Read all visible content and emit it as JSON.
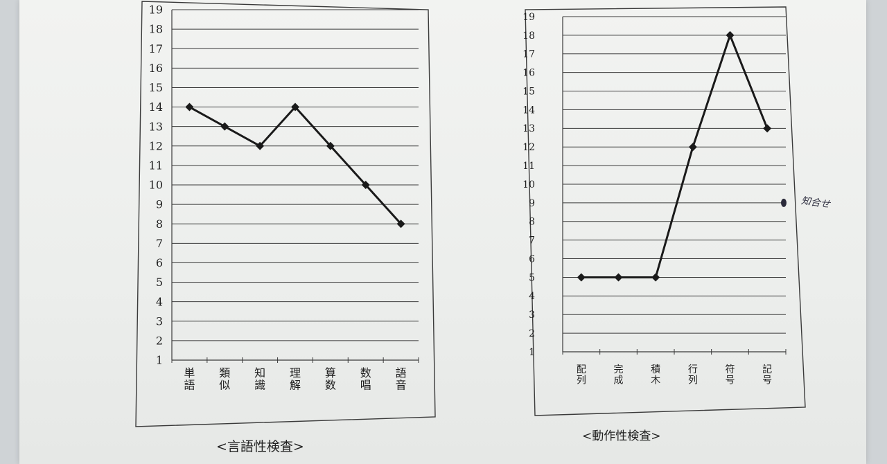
{
  "chart_data": [
    {
      "type": "line",
      "ylim": [
        1,
        19
      ],
      "yticks": [
        1,
        2,
        3,
        4,
        5,
        6,
        7,
        8,
        9,
        10,
        11,
        12,
        13,
        14,
        15,
        16,
        17,
        18,
        19
      ],
      "categories": [
        "単語",
        "類似",
        "知識",
        "理解",
        "算数",
        "数唱",
        "語音"
      ],
      "category_lines": [
        [
          "単",
          "語"
        ],
        [
          "類",
          "似"
        ],
        [
          "知",
          "識"
        ],
        [
          "理",
          "解"
        ],
        [
          "算",
          "数"
        ],
        [
          "数",
          "唱"
        ],
        [
          "語",
          "音"
        ]
      ],
      "values": [
        14,
        13,
        12,
        14,
        12,
        10,
        8
      ],
      "grid": true,
      "caption": "<言語性検査>"
    },
    {
      "type": "line",
      "ylim": [
        1,
        19
      ],
      "yticks": [
        1,
        2,
        3,
        4,
        5,
        6,
        7,
        8,
        9,
        10,
        11,
        12,
        13,
        14,
        15,
        16,
        17,
        18,
        19
      ],
      "categories": [
        "配列",
        "完成",
        "積木",
        "行列",
        "符号",
        "記号"
      ],
      "category_lines": [
        [
          "配",
          "列"
        ],
        [
          "完",
          "成"
        ],
        [
          "積",
          "木"
        ],
        [
          "行",
          "列"
        ],
        [
          "符",
          "号"
        ],
        [
          "記",
          "号"
        ]
      ],
      "values": [
        5,
        5,
        5,
        12,
        18,
        13
      ],
      "grid": true,
      "caption": "<動作性検査>",
      "extra_point": 9,
      "annotation": "知合せ"
    }
  ],
  "colors": {
    "line": "#1a1a1a",
    "grid": "#3a3a3a",
    "text": "#1e1e1e"
  }
}
